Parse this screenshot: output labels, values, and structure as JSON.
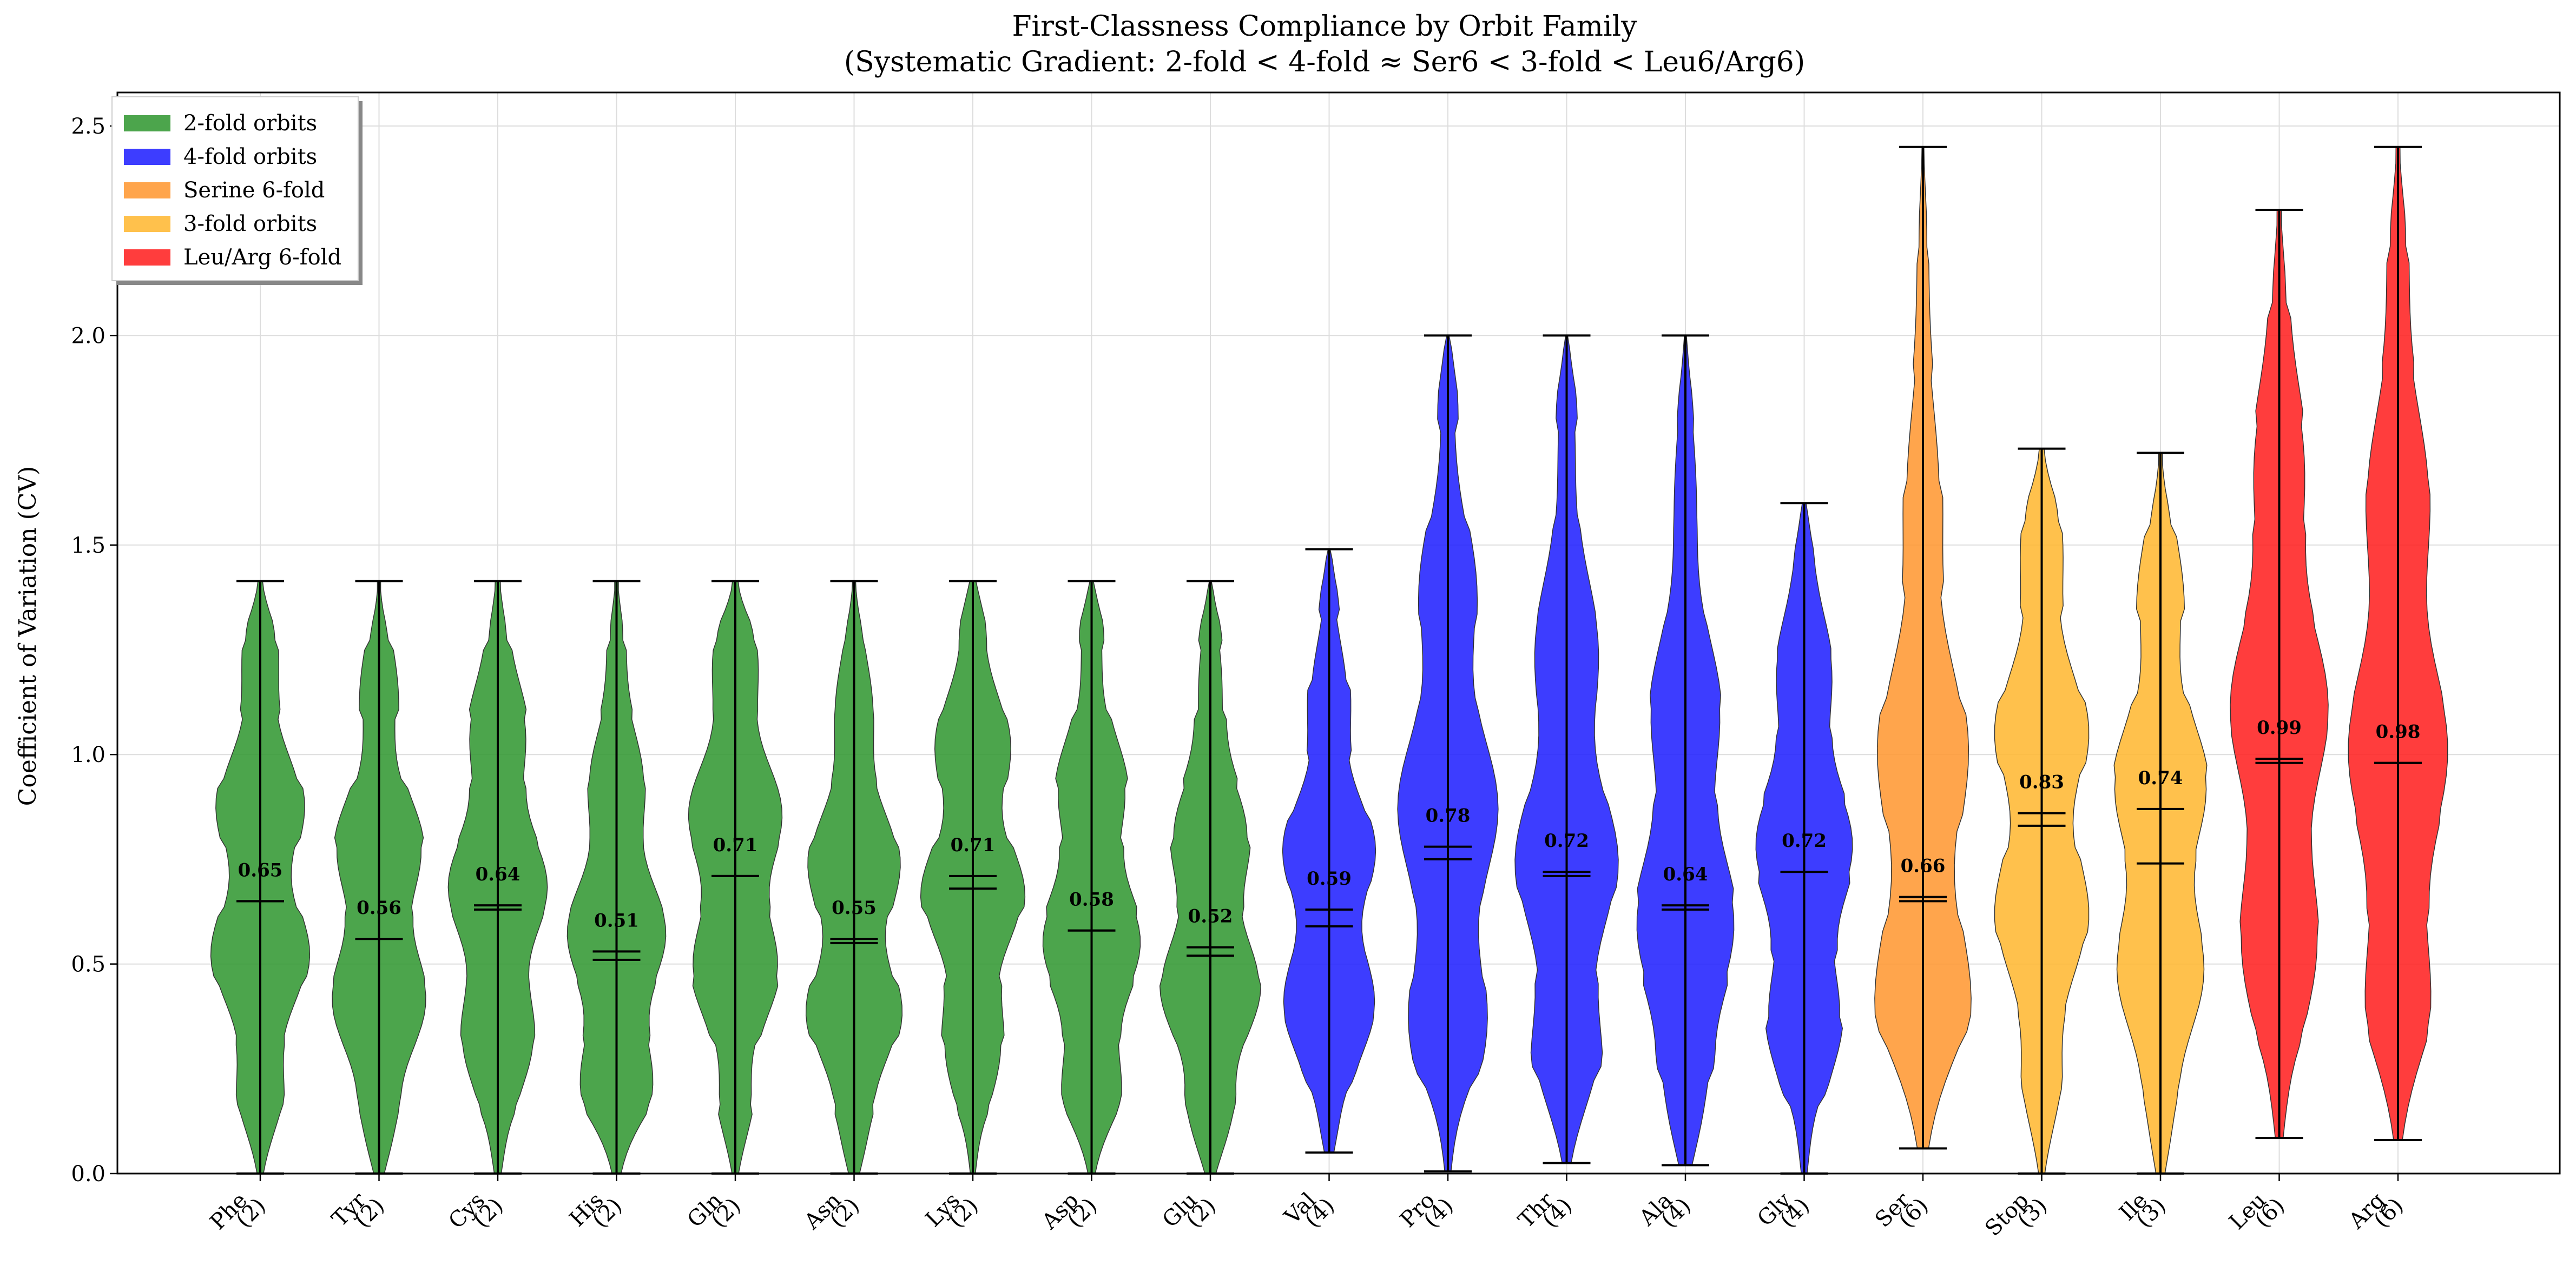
{
  "chart_data": {
    "type": "violin",
    "title": "First-Classness Compliance by Orbit Family",
    "subtitle": "(Systematic Gradient: 2-fold < 4-fold ≈ Ser6 < 3-fold < Leu6/Arg6)",
    "xlabel": "",
    "ylabel": "Coefficient of Variation (CV)",
    "ylim": [
      0.0,
      2.58
    ],
    "yticks": [
      "0.0",
      "0.5",
      "1.0",
      "1.5",
      "2.0",
      "2.5"
    ],
    "grid": true,
    "legend_position": "top-left",
    "legend": [
      {
        "label": "2-fold orbits",
        "color": "#339933"
      },
      {
        "label": "4-fold orbits",
        "color": "#2222ff"
      },
      {
        "label": "Serine 6-fold",
        "color": "#ff9933"
      },
      {
        "label": "3-fold orbits",
        "color": "#ffb833"
      },
      {
        "label": "Leu/Arg 6-fold",
        "color": "#ff2222"
      }
    ],
    "categories": [
      {
        "name": "Phe",
        "count": "(2)",
        "group": 0,
        "min": 0.0,
        "max": 1.414,
        "median": 0.65,
        "mean": 0.65,
        "label": "0.65"
      },
      {
        "name": "Tyr",
        "count": "(2)",
        "group": 0,
        "min": 0.0,
        "max": 1.414,
        "median": 0.56,
        "mean": 0.56,
        "label": "0.56"
      },
      {
        "name": "Cys",
        "count": "(2)",
        "group": 0,
        "min": 0.0,
        "max": 1.414,
        "median": 0.64,
        "mean": 0.63,
        "label": "0.64"
      },
      {
        "name": "His",
        "count": "(2)",
        "group": 0,
        "min": 0.0,
        "max": 1.414,
        "median": 0.51,
        "mean": 0.53,
        "label": "0.51"
      },
      {
        "name": "Gln",
        "count": "(2)",
        "group": 0,
        "min": 0.0,
        "max": 1.414,
        "median": 0.71,
        "mean": 0.71,
        "label": "0.71"
      },
      {
        "name": "Asn",
        "count": "(2)",
        "group": 0,
        "min": 0.0,
        "max": 1.414,
        "median": 0.55,
        "mean": 0.56,
        "label": "0.55"
      },
      {
        "name": "Lys",
        "count": "(2)",
        "group": 0,
        "min": 0.0,
        "max": 1.414,
        "median": 0.71,
        "mean": 0.68,
        "label": "0.71"
      },
      {
        "name": "Asp",
        "count": "(2)",
        "group": 0,
        "min": 0.0,
        "max": 1.414,
        "median": 0.58,
        "mean": 0.58,
        "label": "0.58"
      },
      {
        "name": "Glu",
        "count": "(2)",
        "group": 0,
        "min": 0.0,
        "max": 1.414,
        "median": 0.52,
        "mean": 0.54,
        "label": "0.52"
      },
      {
        "name": "Val",
        "count": "(4)",
        "group": 1,
        "min": 0.05,
        "max": 1.49,
        "median": 0.59,
        "mean": 0.63,
        "label": "0.59"
      },
      {
        "name": "Pro",
        "count": "(4)",
        "group": 1,
        "min": 0.005,
        "max": 2.0,
        "median": 0.78,
        "mean": 0.75,
        "label": "0.78"
      },
      {
        "name": "Thr",
        "count": "(4)",
        "group": 1,
        "min": 0.025,
        "max": 2.0,
        "median": 0.72,
        "mean": 0.71,
        "label": "0.72"
      },
      {
        "name": "Ala",
        "count": "(4)",
        "group": 1,
        "min": 0.02,
        "max": 2.0,
        "median": 0.64,
        "mean": 0.63,
        "label": "0.64"
      },
      {
        "name": "Gly",
        "count": "(4)",
        "group": 1,
        "min": 0.0,
        "max": 1.6,
        "median": 0.72,
        "mean": 0.72,
        "label": "0.72"
      },
      {
        "name": "Ser",
        "count": "(6)",
        "group": 2,
        "min": 0.06,
        "max": 2.45,
        "median": 0.66,
        "mean": 0.65,
        "label": "0.66"
      },
      {
        "name": "Stop",
        "count": "(3)",
        "group": 3,
        "min": 0.0,
        "max": 1.73,
        "median": 0.83,
        "mean": 0.86,
        "label": "0.83"
      },
      {
        "name": "Ile",
        "count": "(3)",
        "group": 3,
        "min": 0.0,
        "max": 1.72,
        "median": 0.74,
        "mean": 0.87,
        "label": "0.74"
      },
      {
        "name": "Leu",
        "count": "(6)",
        "group": 4,
        "min": 0.085,
        "max": 2.3,
        "median": 0.99,
        "mean": 0.98,
        "label": "0.99"
      },
      {
        "name": "Arg",
        "count": "(6)",
        "group": 4,
        "min": 0.08,
        "max": 2.45,
        "median": 0.98,
        "mean": 0.98,
        "label": "0.98"
      }
    ]
  }
}
